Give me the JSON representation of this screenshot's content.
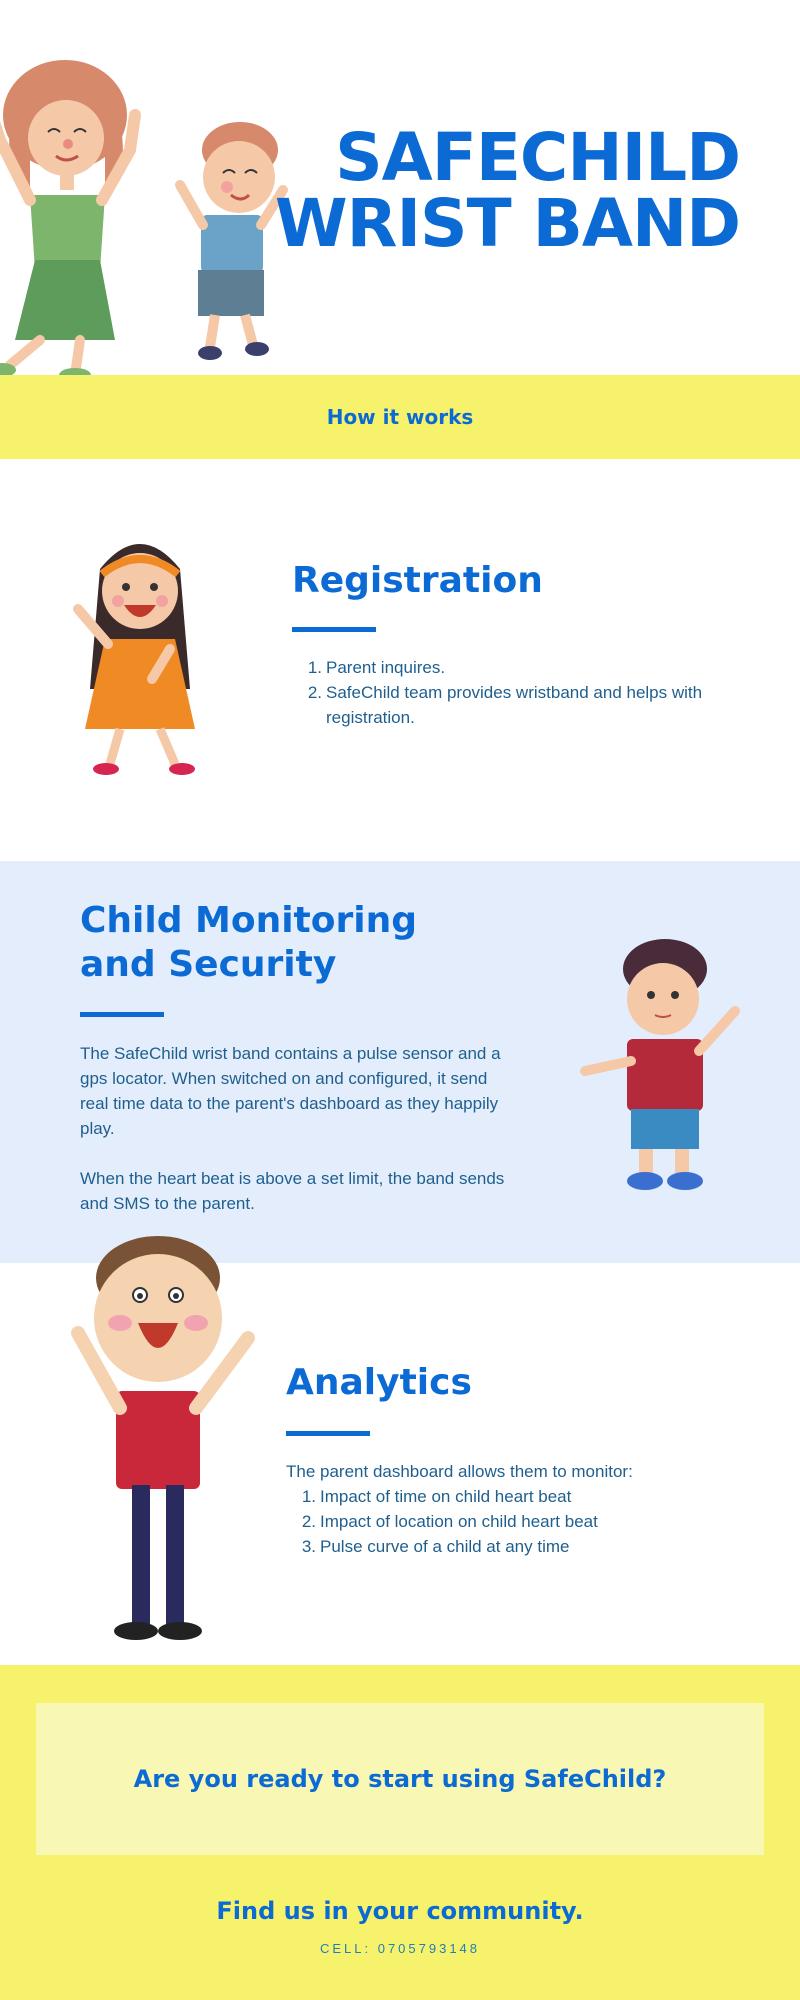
{
  "hero": {
    "title_line1": "SAFECHILD",
    "title_line2": "WRIST BAND"
  },
  "how_it_works": {
    "label": "How it works"
  },
  "registration": {
    "title": "Registration",
    "steps": [
      {
        "num": "1.",
        "text": "Parent inquires."
      },
      {
        "num": "2.",
        "text": "SafeChild team provides wristband and helps with registration."
      }
    ]
  },
  "monitoring": {
    "title": "Child Monitoring and Security",
    "paragraph1": "The SafeChild wrist band contains a pulse sensor and a gps locator. When switched on and configured, it send real time data to the parent's dashboard as they happily play.",
    "paragraph2": "When the heart beat is above a set limit, the band sends and SMS to the parent."
  },
  "analytics": {
    "title": "Analytics",
    "intro": "The parent dashboard allows them to monitor:",
    "items": [
      {
        "num": "1.",
        "text": "Impact of time on child heart beat"
      },
      {
        "num": "2.",
        "text": "Impact of location on child heart beat"
      },
      {
        "num": "3.",
        "text": "Pulse curve of a child at any time"
      }
    ]
  },
  "cta": {
    "question": "Are you ready to start using SafeChild?",
    "find_us": "Find us in your community.",
    "cell": "CELL: 0705793148"
  },
  "illustrations": {
    "mom": "mom-illustration",
    "boy_jumping": "boy-jumping-illustration",
    "girl": "girl-illustration",
    "boy_waving": "boy-waving-illustration",
    "boy_cheering": "boy-cheering-illustration"
  },
  "colors": {
    "brand_blue": "#0b6ad4",
    "text_blue": "#1f5f8e",
    "yellow_band": "#f7f26b",
    "pale_yellow": "#f8f8b4",
    "light_blue_bg": "#e3edfb"
  }
}
